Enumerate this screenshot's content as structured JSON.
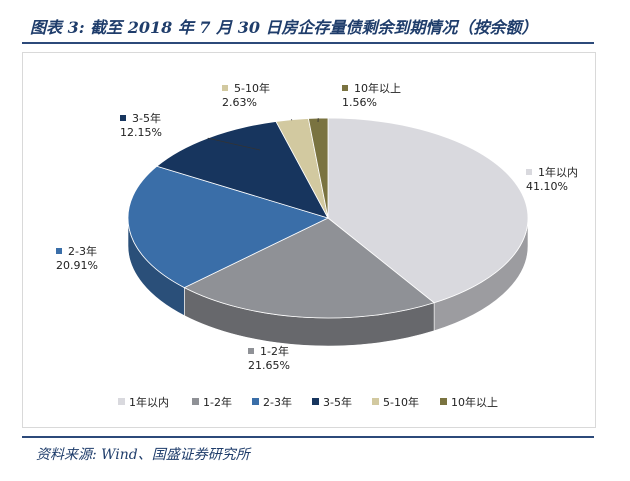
{
  "header": {
    "title": "图表 3: 截至 2018 年 7 月 30 日房企存量债剩余到期情况（按余额）"
  },
  "footer": {
    "source": "资料来源: Wind、国盛证券研究所"
  },
  "chart_data": {
    "type": "pie",
    "title": "",
    "categories": [
      "1年以内",
      "1-2年",
      "2-3年",
      "3-5年",
      "5-10年",
      "10年以上"
    ],
    "values": [
      41.1,
      21.65,
      20.91,
      12.15,
      2.63,
      1.56
    ],
    "value_labels": [
      "41.10%",
      "21.65%",
      "20.91%",
      "12.15%",
      "2.63%",
      "1.56%"
    ],
    "colors": [
      "#d9d9de",
      "#8f9196",
      "#3a6ea8",
      "#17355e",
      "#d2c9a0",
      "#7a7340"
    ],
    "legend_position": "bottom",
    "style": "3d"
  }
}
